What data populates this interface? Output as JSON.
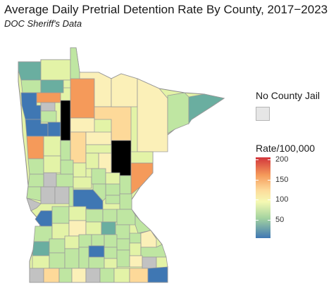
{
  "title": "Average Daily Pretrial Detention Rate By County, 2017−2023",
  "subtitle": "DOC Sheriff's Data",
  "legend": {
    "no_jail_title": "No County Jail",
    "no_jail_color": "#e6e6e6",
    "rate_title": "Rate/100,000",
    "rate_ticks": [
      {
        "value": 200,
        "label": "200"
      },
      {
        "value": 150,
        "label": "150"
      },
      {
        "value": 100,
        "label": "100"
      },
      {
        "value": 50,
        "label": "50"
      }
    ],
    "rate_min": 5,
    "rate_max": 205,
    "colors": {
      "high": "#d2353b",
      "orange": "#f59a5a",
      "light_orange": "#fdd999",
      "pale_yellow": "#fbf0b8",
      "yellow_green": "#e3f3a7",
      "light_green": "#bfe6a2",
      "green": "#8ccfa1",
      "teal": "#6aaea0",
      "blue": "#3f77b3",
      "no_jail": "#c2c2c2",
      "border": "#9a9a9a"
    }
  }
}
